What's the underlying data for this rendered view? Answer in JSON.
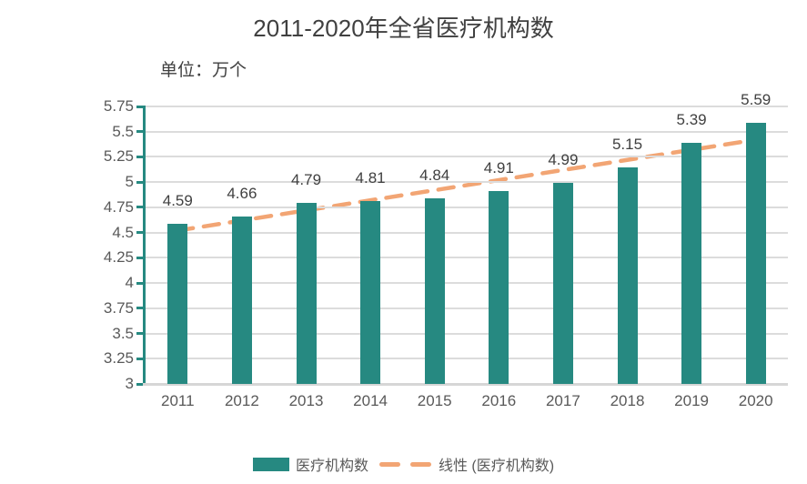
{
  "page": {
    "title": "2011-2020年全省医疗机构数",
    "unit_label": "单位：万个"
  },
  "legend": {
    "bar_label": "医疗机构数",
    "line_label": "线性 (医疗机构数)"
  },
  "colors": {
    "bar": "#268981",
    "trendline": "#f2a574",
    "gridline": "#dcdcdc",
    "y_axis_line": "#268981",
    "bottom_axis": "#d6d6d6",
    "title_text": "#404040",
    "tick_text": "#595959",
    "value_text": "#404040"
  },
  "chart_data": {
    "type": "bar",
    "title": "2011-2020年全省医疗机构数",
    "unit": "万个",
    "categories": [
      "2011",
      "2012",
      "2013",
      "2014",
      "2015",
      "2016",
      "2017",
      "2018",
      "2019",
      "2020"
    ],
    "series": [
      {
        "name": "医疗机构数",
        "values": [
          4.59,
          4.66,
          4.79,
          4.81,
          4.84,
          4.91,
          4.99,
          5.15,
          5.39,
          5.59
        ]
      }
    ],
    "trendline": {
      "name": "线性 (医疗机构数)",
      "start_value": 4.52,
      "end_value": 5.42
    },
    "ylim": [
      3,
      5.75
    ],
    "yticks": [
      3,
      3.25,
      3.5,
      3.75,
      4,
      4.25,
      4.5,
      4.75,
      5,
      5.25,
      5.5,
      5.75
    ],
    "grid": true,
    "value_labels": true,
    "legend_position": "bottom"
  }
}
